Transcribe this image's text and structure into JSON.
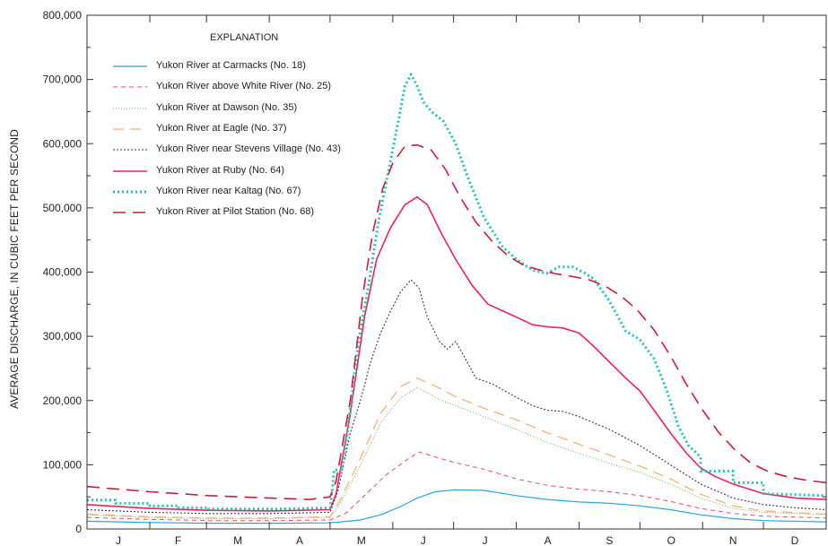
{
  "chart_data": {
    "type": "line",
    "ylabel": "AVERAGE DISCHARGE, IN CUBIC FEET PER SECOND",
    "xlabel": "",
    "ylim": [
      0,
      800000
    ],
    "yticks": [
      "0",
      "100,000",
      "200,000",
      "300,000",
      "400,000",
      "500,000",
      "600,000",
      "700,000",
      "800,000"
    ],
    "months": [
      "J",
      "F",
      "M",
      "A",
      "M",
      "J",
      "J",
      "A",
      "S",
      "O",
      "N",
      "D"
    ],
    "legend_title": "EXPLANATION",
    "legend_placement": "top-left",
    "grid": false,
    "x_unit": "day of year",
    "series": [
      {
        "name": "Yukon River at Carmacks (No. 18)",
        "color": "#22a8e0",
        "style": "solid",
        "width": 1.2,
        "points": [
          [
            0,
            12000
          ],
          [
            31,
            10000
          ],
          [
            60,
            9000
          ],
          [
            91,
            9000
          ],
          [
            120,
            9500
          ],
          [
            135,
            14000
          ],
          [
            145,
            22000
          ],
          [
            155,
            35000
          ],
          [
            163,
            48000
          ],
          [
            172,
            58000
          ],
          [
            182,
            61000
          ],
          [
            196,
            60000
          ],
          [
            212,
            52000
          ],
          [
            227,
            46000
          ],
          [
            243,
            42000
          ],
          [
            258,
            40000
          ],
          [
            273,
            36000
          ],
          [
            288,
            30000
          ],
          [
            303,
            22000
          ],
          [
            319,
            16000
          ],
          [
            334,
            13000
          ],
          [
            365,
            11000
          ]
        ]
      },
      {
        "name": "Yukon River above White River (No. 25)",
        "color": "#e0506a",
        "style": "dashed-short",
        "width": 1,
        "points": [
          [
            0,
            18000
          ],
          [
            31,
            15000
          ],
          [
            60,
            13000
          ],
          [
            91,
            13000
          ],
          [
            120,
            14000
          ],
          [
            128,
            25000
          ],
          [
            138,
            55000
          ],
          [
            148,
            85000
          ],
          [
            158,
            108000
          ],
          [
            164,
            120000
          ],
          [
            172,
            112000
          ],
          [
            182,
            103000
          ],
          [
            196,
            93000
          ],
          [
            212,
            78000
          ],
          [
            227,
            68000
          ],
          [
            243,
            62000
          ],
          [
            258,
            58000
          ],
          [
            273,
            52000
          ],
          [
            288,
            43000
          ],
          [
            303,
            32000
          ],
          [
            319,
            24000
          ],
          [
            334,
            20000
          ],
          [
            365,
            17000
          ]
        ]
      },
      {
        "name": "Yukon River at Dawson (No. 35)",
        "color": "#7aa84a",
        "style": "dotted-fine",
        "width": 1,
        "points": [
          [
            0,
            22000
          ],
          [
            31,
            18000
          ],
          [
            60,
            16000
          ],
          [
            91,
            16000
          ],
          [
            120,
            18000
          ],
          [
            125,
            40000
          ],
          [
            135,
            100000
          ],
          [
            145,
            165000
          ],
          [
            155,
            205000
          ],
          [
            163,
            220000
          ],
          [
            168,
            212000
          ],
          [
            175,
            200000
          ],
          [
            182,
            192000
          ],
          [
            196,
            175000
          ],
          [
            212,
            155000
          ],
          [
            227,
            135000
          ],
          [
            243,
            118000
          ],
          [
            258,
            102000
          ],
          [
            273,
            88000
          ],
          [
            288,
            70000
          ],
          [
            303,
            48000
          ],
          [
            319,
            32000
          ],
          [
            334,
            26000
          ],
          [
            365,
            22000
          ]
        ]
      },
      {
        "name": "Yukon River at Eagle (No. 37)",
        "color": "#f0b070",
        "style": "dashed-long",
        "width": 1.2,
        "points": [
          [
            0,
            23000
          ],
          [
            31,
            19000
          ],
          [
            60,
            17000
          ],
          [
            91,
            17000
          ],
          [
            120,
            19000
          ],
          [
            125,
            45000
          ],
          [
            135,
            110000
          ],
          [
            145,
            180000
          ],
          [
            155,
            222000
          ],
          [
            163,
            235000
          ],
          [
            168,
            228000
          ],
          [
            175,
            218000
          ],
          [
            182,
            206000
          ],
          [
            196,
            188000
          ],
          [
            212,
            170000
          ],
          [
            227,
            150000
          ],
          [
            243,
            132000
          ],
          [
            258,
            115000
          ],
          [
            273,
            98000
          ],
          [
            288,
            78000
          ],
          [
            303,
            54000
          ],
          [
            319,
            36000
          ],
          [
            334,
            28000
          ],
          [
            365,
            23000
          ]
        ]
      },
      {
        "name": "Yukon River near Stevens Village (No. 43)",
        "color": "#4a2a5a",
        "style": "dotted-dense",
        "width": 1.1,
        "points": [
          [
            0,
            30000
          ],
          [
            31,
            26000
          ],
          [
            60,
            24000
          ],
          [
            91,
            24000
          ],
          [
            120,
            26000
          ],
          [
            124,
            60000
          ],
          [
            130,
            150000
          ],
          [
            135,
            200000
          ],
          [
            140,
            260000
          ],
          [
            145,
            305000
          ],
          [
            150,
            340000
          ],
          [
            155,
            370000
          ],
          [
            160,
            388000
          ],
          [
            164,
            375000
          ],
          [
            168,
            330000
          ],
          [
            174,
            292000
          ],
          [
            178,
            280000
          ],
          [
            182,
            292000
          ],
          [
            186,
            270000
          ],
          [
            192,
            235000
          ],
          [
            200,
            226000
          ],
          [
            212,
            205000
          ],
          [
            220,
            192000
          ],
          [
            227,
            185000
          ],
          [
            235,
            183000
          ],
          [
            243,
            175000
          ],
          [
            258,
            155000
          ],
          [
            273,
            130000
          ],
          [
            288,
            100000
          ],
          [
            303,
            70000
          ],
          [
            319,
            48000
          ],
          [
            334,
            38000
          ],
          [
            350,
            33000
          ],
          [
            365,
            30000
          ]
        ]
      },
      {
        "name": "Yukon River at Ruby (No. 64)",
        "color": "#e8245a",
        "style": "solid",
        "width": 1.6,
        "points": [
          [
            0,
            38000
          ],
          [
            31,
            32000
          ],
          [
            60,
            29000
          ],
          [
            91,
            28000
          ],
          [
            120,
            30000
          ],
          [
            123,
            55000
          ],
          [
            130,
            180000
          ],
          [
            137,
            330000
          ],
          [
            143,
            420000
          ],
          [
            150,
            470000
          ],
          [
            157,
            505000
          ],
          [
            163,
            517000
          ],
          [
            168,
            505000
          ],
          [
            175,
            460000
          ],
          [
            182,
            420000
          ],
          [
            190,
            380000
          ],
          [
            198,
            350000
          ],
          [
            205,
            340000
          ],
          [
            212,
            330000
          ],
          [
            220,
            318000
          ],
          [
            227,
            315000
          ],
          [
            235,
            313000
          ],
          [
            243,
            305000
          ],
          [
            250,
            285000
          ],
          [
            258,
            260000
          ],
          [
            266,
            235000
          ],
          [
            273,
            215000
          ],
          [
            280,
            185000
          ],
          [
            288,
            150000
          ],
          [
            296,
            118000
          ],
          [
            303,
            95000
          ],
          [
            310,
            82000
          ],
          [
            319,
            70000
          ],
          [
            334,
            55000
          ],
          [
            350,
            48000
          ],
          [
            365,
            46000
          ]
        ]
      },
      {
        "name": "Yukon River near Kaltag (No. 67)",
        "color": "#23c1b0",
        "style": "dotted-bold",
        "width": 3,
        "points": [
          [
            0,
            45000
          ],
          [
            14,
            45000
          ],
          [
            14,
            40000
          ],
          [
            31,
            40000
          ],
          [
            31,
            36000
          ],
          [
            45,
            36000
          ],
          [
            45,
            33000
          ],
          [
            60,
            33000
          ],
          [
            60,
            31000
          ],
          [
            91,
            31000
          ],
          [
            110,
            32000
          ],
          [
            120,
            33000
          ],
          [
            121,
            60000
          ],
          [
            122,
            92000
          ],
          [
            126,
            92000
          ],
          [
            129,
            160000
          ],
          [
            134,
            290000
          ],
          [
            139,
            380000
          ],
          [
            144,
            480000
          ],
          [
            149,
            560000
          ],
          [
            154,
            640000
          ],
          [
            157,
            690000
          ],
          [
            160,
            708000
          ],
          [
            163,
            690000
          ],
          [
            166,
            665000
          ],
          [
            170,
            650000
          ],
          [
            176,
            635000
          ],
          [
            182,
            600000
          ],
          [
            188,
            548000
          ],
          [
            196,
            485000
          ],
          [
            205,
            440000
          ],
          [
            212,
            420000
          ],
          [
            220,
            403000
          ],
          [
            227,
            398000
          ],
          [
            233,
            408000
          ],
          [
            240,
            408000
          ],
          [
            246,
            398000
          ],
          [
            250,
            390000
          ],
          [
            258,
            355000
          ],
          [
            266,
            308000
          ],
          [
            273,
            295000
          ],
          [
            280,
            265000
          ],
          [
            286,
            218000
          ],
          [
            292,
            160000
          ],
          [
            297,
            130000
          ],
          [
            303,
            112000
          ],
          [
            303,
            90000
          ],
          [
            319,
            90000
          ],
          [
            319,
            72000
          ],
          [
            334,
            72000
          ],
          [
            334,
            55000
          ],
          [
            365,
            52000
          ]
        ]
      },
      {
        "name": "Yukon River at Pilot Station (No. 68)",
        "color": "#c81e3a",
        "style": "dashed-heavy",
        "width": 1.6,
        "points": [
          [
            0,
            66000
          ],
          [
            31,
            58000
          ],
          [
            60,
            52000
          ],
          [
            91,
            48000
          ],
          [
            110,
            46000
          ],
          [
            120,
            50000
          ],
          [
            123,
            75000
          ],
          [
            130,
            200000
          ],
          [
            136,
            360000
          ],
          [
            141,
            460000
          ],
          [
            146,
            530000
          ],
          [
            151,
            570000
          ],
          [
            157,
            596000
          ],
          [
            163,
            598000
          ],
          [
            170,
            590000
          ],
          [
            177,
            560000
          ],
          [
            184,
            518000
          ],
          [
            192,
            478000
          ],
          [
            200,
            448000
          ],
          [
            208,
            425000
          ],
          [
            216,
            410000
          ],
          [
            224,
            403000
          ],
          [
            232,
            397000
          ],
          [
            240,
            393000
          ],
          [
            248,
            388000
          ],
          [
            256,
            378000
          ],
          [
            264,
            362000
          ],
          [
            272,
            340000
          ],
          [
            280,
            310000
          ],
          [
            288,
            270000
          ],
          [
            296,
            225000
          ],
          [
            304,
            185000
          ],
          [
            312,
            150000
          ],
          [
            320,
            123000
          ],
          [
            328,
            102000
          ],
          [
            336,
            90000
          ],
          [
            345,
            82000
          ],
          [
            355,
            76000
          ],
          [
            365,
            72000
          ]
        ]
      }
    ]
  }
}
